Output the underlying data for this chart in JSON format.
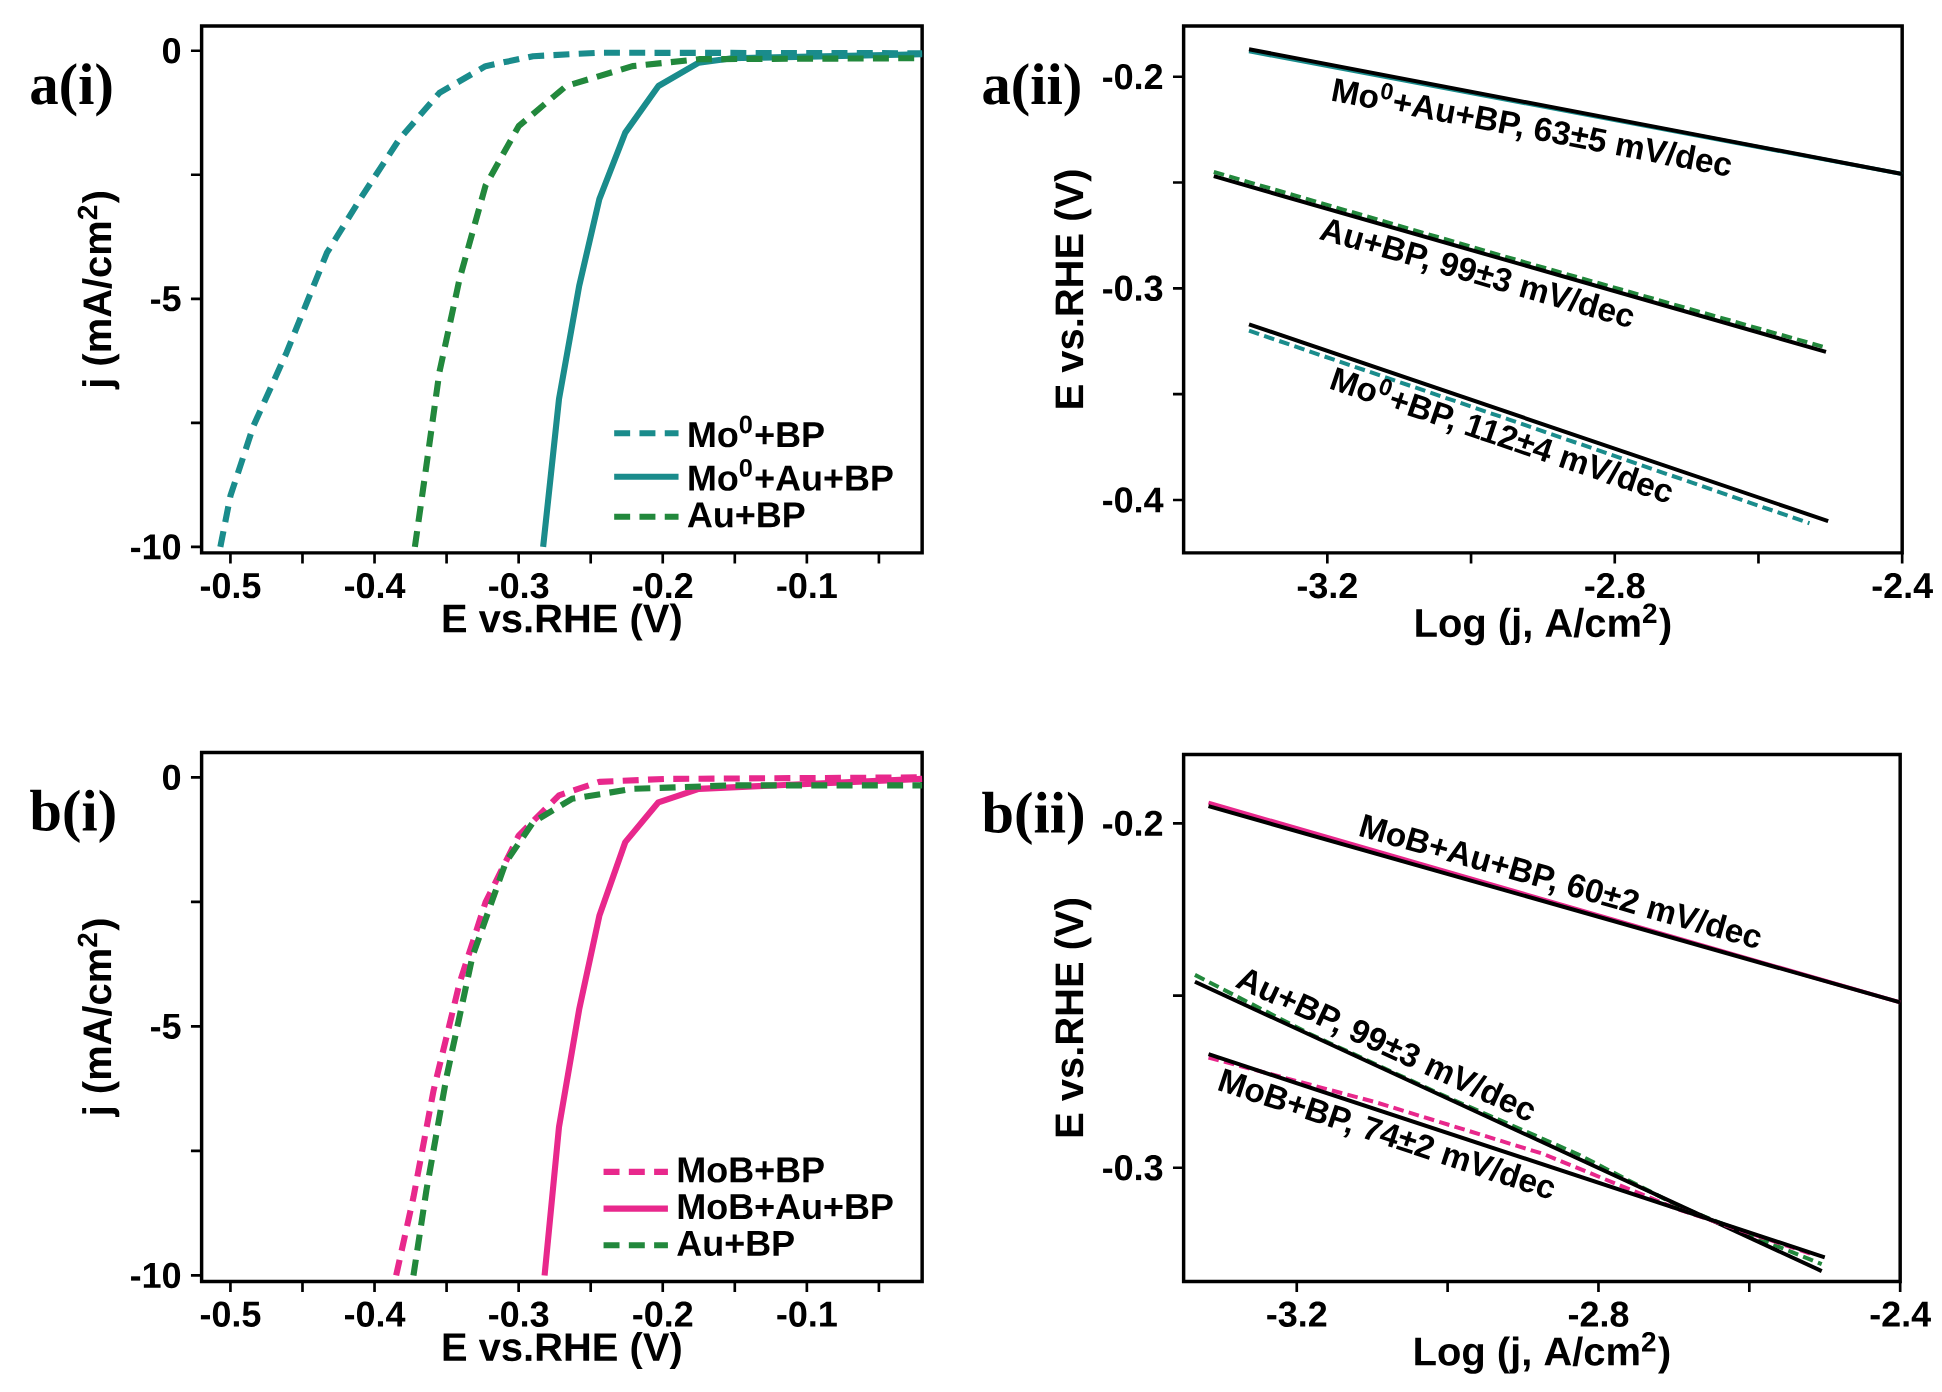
{
  "chart_data": [
    {
      "type": "line",
      "title": "a(i)",
      "xlabel": "E vs.RHE (V)",
      "ylabel": "j (mA/cm$^{2}$)",
      "xlim": [
        -0.52,
        -0.02
      ],
      "ylim": [
        -10.12,
        0.5
      ],
      "xticks": [
        -0.5,
        {
          "value": -0.45,
          "label": null
        },
        -0.4,
        {
          "value": -0.35,
          "label": null
        },
        -0.3,
        {
          "value": -0.25,
          "label": null
        },
        -0.2,
        {
          "value": -0.15,
          "label": null
        },
        -0.1,
        {
          "value": -0.05,
          "label": null
        }
      ],
      "yticks": [
        -10,
        {
          "value": -7.5,
          "label": null
        },
        -5,
        {
          "value": -2.5,
          "label": null
        },
        0
      ],
      "legend": "bottom right",
      "series": [
        {
          "name": "Mo$^{0}$+BP",
          "color": "#1a8c8c",
          "line_style": "dashed",
          "x": [
            -0.507,
            -0.5,
            -0.484,
            -0.461,
            -0.433,
            -0.41,
            -0.383,
            -0.355,
            -0.323,
            -0.29,
            -0.244,
            -0.02
          ],
          "values": [
            -10,
            -8.97,
            -7.56,
            -6.08,
            -4.07,
            -2.99,
            -1.79,
            -0.85,
            -0.31,
            -0.11,
            -0.04,
            -0.05
          ]
        },
        {
          "name": "Mo$^{0}$+Au+BP",
          "color": "#1a8c8c",
          "line_style": "solid",
          "x": [
            -0.283,
            -0.272,
            -0.258,
            -0.244,
            -0.226,
            -0.203,
            -0.175,
            -0.152,
            -0.02
          ],
          "values": [
            -10,
            -7.02,
            -4.74,
            -2.99,
            -1.65,
            -0.71,
            -0.24,
            -0.15,
            -0.07
          ]
        },
        {
          "name": "Au+BP",
          "color": "#22883c",
          "line_style": "dashed",
          "x": [
            -0.372,
            -0.364,
            -0.355,
            -0.341,
            -0.323,
            -0.3,
            -0.267,
            -0.221,
            -0.175,
            -0.02
          ],
          "values": [
            -10,
            -8.36,
            -6.48,
            -4.6,
            -2.72,
            -1.52,
            -0.71,
            -0.31,
            -0.17,
            -0.15
          ]
        }
      ]
    },
    {
      "type": "line",
      "title": "a(ii)",
      "xlabel": "Log (j, A/cm$^{2}$)",
      "ylabel": "E vs.RHE (V)",
      "xlim": [
        -3.4,
        -2.4
      ],
      "ylim": [
        -0.425,
        -0.176
      ],
      "xticks": [
        -3.2,
        {
          "value": -3.0,
          "label": null
        },
        -2.8,
        {
          "value": -2.6,
          "label": null
        },
        -2.4
      ],
      "yticks": [
        -0.4,
        {
          "value": -0.35,
          "label": null
        },
        -0.3,
        {
          "value": -0.25,
          "label": null
        },
        -0.2
      ],
      "annotations": [
        "Mo$^{0}$+Au+BP, 63±5 mV/dec",
        "Au+BP, 99±3 mV/dec",
        "Mo$^{0}$+BP, 112±4 mV/dec"
      ],
      "series": [
        {
          "color": "#1a8c8c",
          "line_style": "solid",
          "x": [
            -3.309,
            -2.4
          ],
          "values": [
            -0.188,
            -0.246
          ]
        },
        {
          "color": "#000000",
          "line_style": "solid",
          "x": [
            -3.309,
            -2.4
          ],
          "values": [
            -0.187,
            -0.246
          ]
        },
        {
          "color": "#22883c",
          "line_style": "dashed",
          "x": [
            -3.358,
            -2.932,
            -2.506
          ],
          "values": [
            -0.245,
            -0.287,
            -0.328
          ]
        },
        {
          "color": "#000000",
          "line_style": "solid",
          "x": [
            -3.358,
            -2.506
          ],
          "values": [
            -0.247,
            -0.33
          ]
        },
        {
          "color": "#1a8c8c",
          "line_style": "dashed",
          "x": [
            -3.309,
            -2.947,
            -2.529
          ],
          "values": [
            -0.32,
            -0.362,
            -0.411
          ]
        },
        {
          "color": "#000000",
          "line_style": "solid",
          "x": [
            -3.309,
            -2.503
          ],
          "values": [
            -0.317,
            -0.41
          ]
        }
      ]
    },
    {
      "type": "line",
      "title": "b(i)",
      "xlabel": "E vs.RHE (V)",
      "ylabel": "j (mA/cm$^{2}$)",
      "xlim": [
        -0.52,
        -0.02
      ],
      "ylim": [
        -10.12,
        0.5
      ],
      "xticks": [
        -0.5,
        {
          "value": -0.45,
          "label": null
        },
        -0.4,
        {
          "value": -0.35,
          "label": null
        },
        -0.3,
        {
          "value": -0.25,
          "label": null
        },
        -0.2,
        {
          "value": -0.15,
          "label": null
        },
        -0.1,
        {
          "value": -0.05,
          "label": null
        }
      ],
      "yticks": [
        -10,
        {
          "value": -7.5,
          "label": null
        },
        -5,
        {
          "value": -2.5,
          "label": null
        },
        0
      ],
      "legend": "bottom right",
      "series": [
        {
          "name": "MoB+BP",
          "color": "#e8288c",
          "line_style": "dashed",
          "x": [
            -0.385,
            -0.373,
            -0.359,
            -0.341,
            -0.323,
            -0.3,
            -0.272,
            -0.244,
            -0.198,
            -0.02
          ],
          "values": [
            -10,
            -8.43,
            -6.28,
            -4.13,
            -2.51,
            -1.17,
            -0.36,
            -0.09,
            -0.03,
            0
          ]
        },
        {
          "name": "MoB+Au+BP",
          "color": "#e8288c",
          "line_style": "solid",
          "x": [
            -0.282,
            -0.272,
            -0.258,
            -0.244,
            -0.226,
            -0.203,
            -0.175,
            -0.02
          ],
          "values": [
            -10,
            -7.02,
            -4.66,
            -2.78,
            -1.3,
            -0.5,
            -0.23,
            -0.03
          ]
        },
        {
          "name": "Au+BP",
          "color": "#22883c",
          "line_style": "dashed",
          "x": [
            -0.373,
            -0.364,
            -0.35,
            -0.332,
            -0.309,
            -0.29,
            -0.263,
            -0.221,
            -0.152,
            -0.02
          ],
          "values": [
            -10,
            -8.29,
            -6.01,
            -3.59,
            -1.71,
            -0.9,
            -0.43,
            -0.23,
            -0.16,
            -0.16
          ]
        }
      ]
    },
    {
      "type": "line",
      "title": "b(ii)",
      "xlabel": "Log (j, A/cm$^{2}$)",
      "ylabel": "E vs.RHE (V)",
      "xlim": [
        -3.35,
        -2.4
      ],
      "ylim": [
        -0.333,
        -0.18
      ],
      "xticks": [
        -3.2,
        {
          "value": -3.0,
          "label": null
        },
        -2.8,
        {
          "value": -2.6,
          "label": null
        },
        -2.4
      ],
      "yticks": [
        -0.3,
        {
          "value": -0.25,
          "label": null
        },
        -0.2
      ],
      "annotations": [
        "MoB+Au+BP, 60±2 mV/dec",
        "Au+BP, 99±3 mV/dec",
        "MoB+BP, 74±2 mV/dec"
      ],
      "series": [
        {
          "color": "#e8288c",
          "line_style": "solid",
          "x": [
            -3.317,
            -2.4
          ],
          "values": [
            -0.194,
            -0.252
          ]
        },
        {
          "color": "#000000",
          "line_style": "solid",
          "x": [
            -3.317,
            -2.4
          ],
          "values": [
            -0.195,
            -0.252
          ]
        },
        {
          "color": "#22883c",
          "line_style": "dashed",
          "x": [
            -3.335,
            -3.184,
            -3.006,
            -2.828,
            -2.695,
            -2.504
          ],
          "values": [
            -0.244,
            -0.261,
            -0.279,
            -0.296,
            -0.311,
            -0.328
          ]
        },
        {
          "color": "#000000",
          "line_style": "solid",
          "x": [
            -3.335,
            -2.504
          ],
          "values": [
            -0.246,
            -0.33
          ]
        },
        {
          "color": "#e8288c",
          "line_style": "dashed",
          "x": [
            -3.317,
            -3.095,
            -2.873,
            -2.695,
            -2.518
          ],
          "values": [
            -0.268,
            -0.281,
            -0.296,
            -0.312,
            -0.325
          ]
        },
        {
          "color": "#000000",
          "line_style": "solid",
          "x": [
            -3.317,
            -2.5
          ],
          "values": [
            -0.267,
            -0.326
          ]
        }
      ]
    }
  ]
}
